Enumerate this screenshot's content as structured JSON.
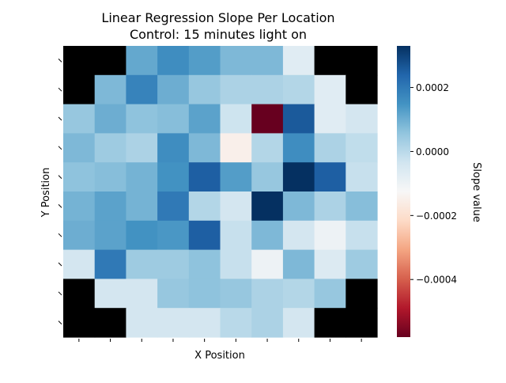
{
  "chart_data": {
    "type": "heatmap",
    "title": "Linear Regression Slope Per Location",
    "subtitle": "Control: 15 minutes light on",
    "xlabel": "X Position",
    "ylabel": "Y Position",
    "colorbar_label": "Slope value",
    "colormap": "RdBu",
    "vmin": -0.00058,
    "vmax": 0.00033,
    "colorbar_ticks": [
      {
        "value": 0.0002,
        "label": "0.0002"
      },
      {
        "value": 0.0,
        "label": "0.0000"
      },
      {
        "value": -0.0002,
        "label": "−0.0002"
      },
      {
        "value": -0.0004,
        "label": "−0.0004"
      }
    ],
    "x_tick_count": 10,
    "y_tick_count": 10,
    "missing_color": "#000000",
    "rows": [
      [
        null,
        null,
        0.00011,
        0.00016,
        0.00013,
        8e-05,
        8e-05,
        -7e-05,
        null,
        null
      ],
      [
        null,
        8e-05,
        0.00018,
        0.0001,
        5e-05,
        2e-05,
        2e-05,
        1e-05,
        -7e-05,
        null
      ],
      [
        5e-05,
        0.0001,
        6e-05,
        7e-05,
        0.00012,
        -3e-05,
        -0.00058,
        0.00026,
        -7e-05,
        -4e-05
      ],
      [
        8e-05,
        4e-05,
        2e-05,
        0.00016,
        8e-05,
        -0.00015,
        1e-05,
        0.00016,
        2e-05,
        -1e-05
      ],
      [
        6e-05,
        7e-05,
        9e-05,
        0.00015,
        0.00025,
        0.00013,
        5e-05,
        0.00033,
        0.00025,
        -2e-05
      ],
      [
        9e-05,
        0.00012,
        9e-05,
        0.0002,
        1e-05,
        -4e-05,
        0.00033,
        8e-05,
        2e-05,
        7e-05
      ],
      [
        0.0001,
        0.00012,
        0.00015,
        0.00014,
        0.00025,
        -2e-05,
        8e-05,
        -4e-05,
        -0.0001,
        -2e-05
      ],
      [
        -4e-05,
        0.0002,
        4e-05,
        4e-05,
        6e-05,
        -2e-05,
        -0.0001,
        8e-05,
        -6e-05,
        4e-05
      ],
      [
        null,
        -4e-05,
        -4e-05,
        5e-05,
        6e-05,
        5e-05,
        2e-05,
        1e-05,
        5e-05,
        null
      ],
      [
        null,
        null,
        -4e-05,
        -4e-05,
        -4e-05,
        0.0,
        2e-05,
        -4e-05,
        null,
        null
      ]
    ]
  }
}
